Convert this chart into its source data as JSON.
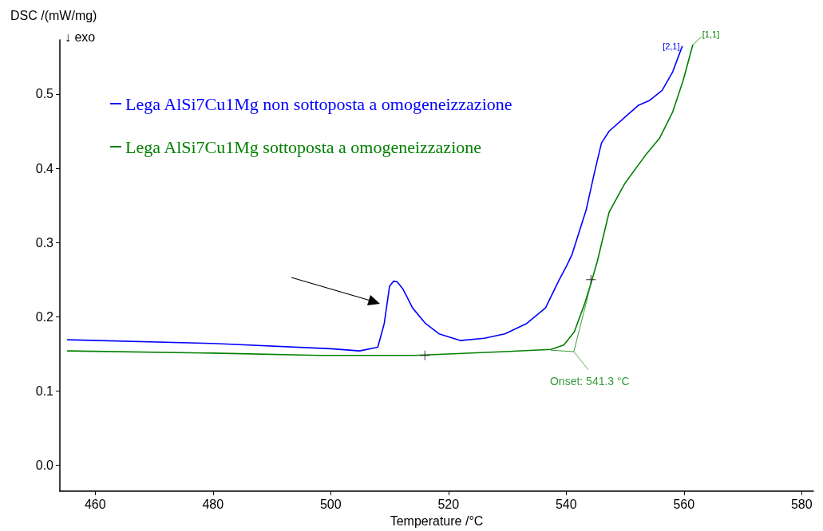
{
  "chart_data": {
    "type": "line",
    "xlabel": "Temperature /°C",
    "ylabel": "DSC /(mW/mg)",
    "xlim": [
      454,
      582
    ],
    "xticks": [
      460,
      480,
      500,
      520,
      540,
      560,
      580
    ],
    "ylim": [
      -0.035,
      0.573
    ],
    "yticks": [
      {
        "value": 0,
        "label": "0.0"
      },
      0.1,
      0.2,
      0.3,
      0.4,
      0.5
    ],
    "grid": false,
    "legend": "top left",
    "marker": "none",
    "annotations": [
      "↓ exo",
      {
        "text": "Onset: 541.3 °C",
        "x": 541.3,
        "y": 0.153
      },
      {
        "text": "[2,1]",
        "x": 559.7,
        "y": 0.564
      },
      {
        "text": "[1,1]",
        "x": 561.5,
        "y": 0.566
      }
    ],
    "series": [
      {
        "name": "Lega AlSi7Cu1Mg non sottoposta a omogeneizzazione",
        "color": "#0000ff",
        "x": [
          455.3,
          480.0,
          500.0,
          504.9,
          508.0,
          509.1,
          510.0,
          510.7,
          511.3,
          512.3,
          513.9,
          516.1,
          518.4,
          522.0,
          526.1,
          529.6,
          533.3,
          536.5,
          538.7,
          540.1,
          541.0,
          543.4,
          544.8,
          546.0,
          547.3,
          550.0,
          552.3,
          554.1,
          556.3,
          558.1,
          559.7
        ],
        "values": [
          0.169,
          0.164,
          0.157,
          0.154,
          0.159,
          0.191,
          0.241,
          0.248,
          0.247,
          0.237,
          0.212,
          0.191,
          0.177,
          0.168,
          0.171,
          0.177,
          0.191,
          0.212,
          0.248,
          0.269,
          0.284,
          0.344,
          0.394,
          0.434,
          0.45,
          0.469,
          0.485,
          0.491,
          0.505,
          0.53,
          0.564
        ]
      },
      {
        "name": "Lega AlSi7Cu1Mg sottoposta a omogeneizzazione",
        "color": "#008000",
        "x": [
          455.3,
          480.0,
          498.1,
          514.3,
          529.6,
          537.4,
          539.6,
          541.4,
          543.2,
          544.4,
          545.3,
          547.3,
          550.0,
          553.6,
          555.9,
          558.1,
          559.9,
          561.5
        ],
        "values": [
          0.154,
          0.151,
          0.148,
          0.148,
          0.153,
          0.156,
          0.162,
          0.18,
          0.219,
          0.25,
          0.275,
          0.341,
          0.38,
          0.419,
          0.441,
          0.476,
          0.519,
          0.566
        ]
      },
      {
        "color": "#3a9a3a",
        "x": [
          537.4,
          541.3,
          544.4
        ],
        "values": [
          0.155,
          0.153,
          0.25
        ]
      },
      {
        "type": "scatter",
        "marker": "cross",
        "color": "#000000",
        "x": [
          516.0,
          544.2
        ],
        "values": [
          0.148,
          0.25
        ]
      }
    ]
  }
}
